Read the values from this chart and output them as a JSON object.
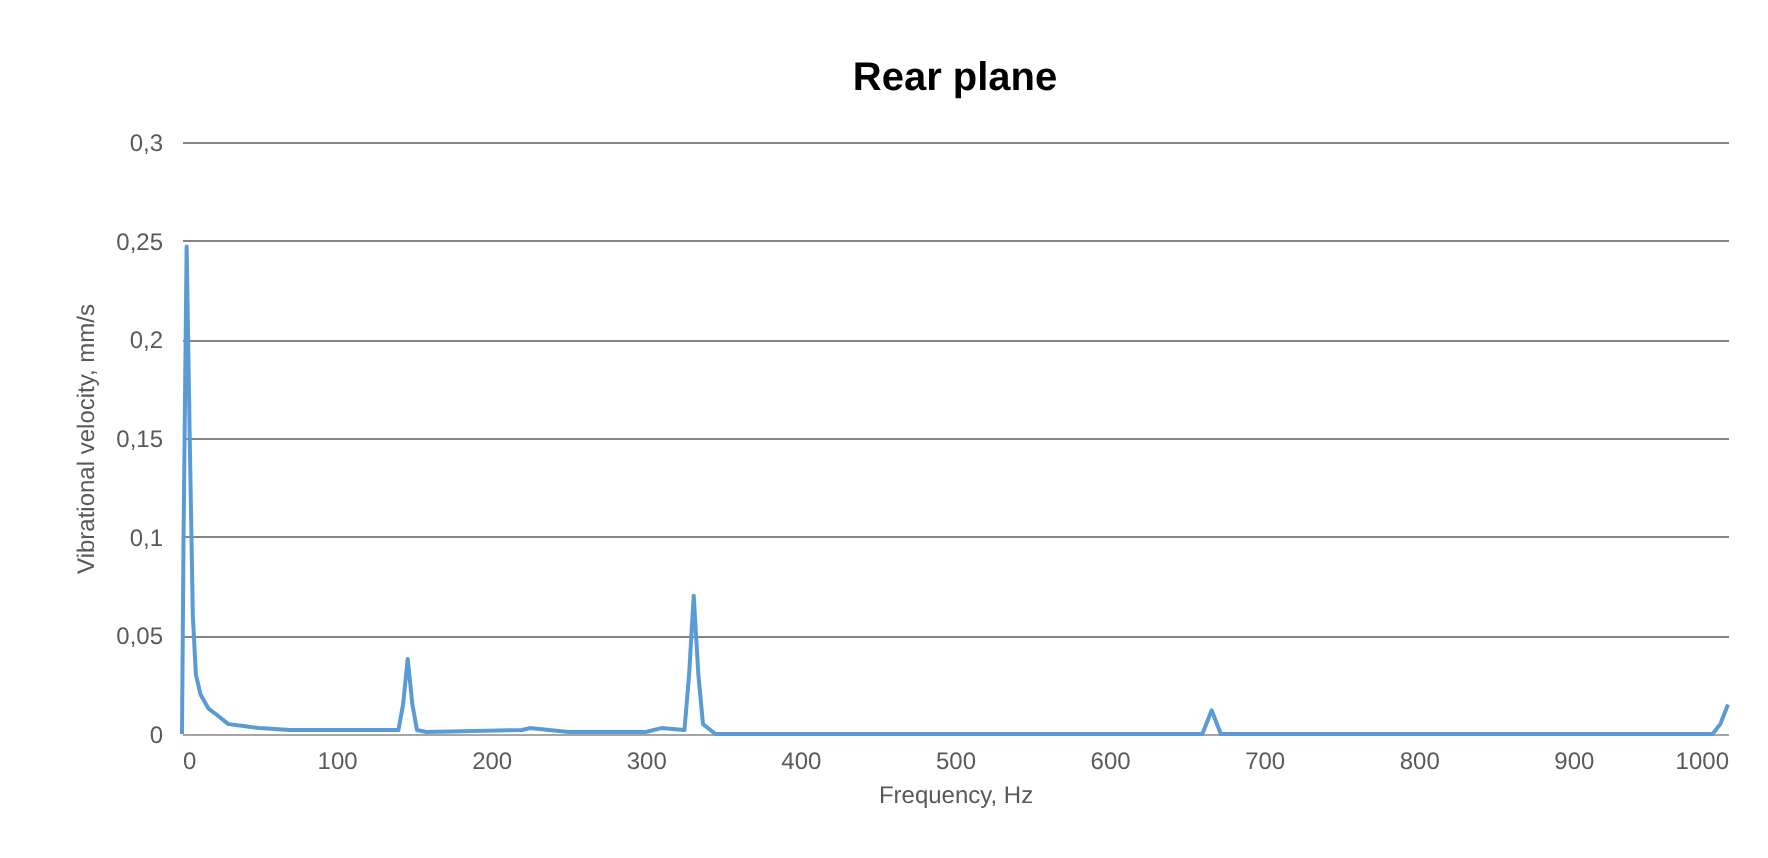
{
  "chart_data": {
    "type": "line",
    "title": "Rear plane",
    "xlabel": "Frequency, Hz",
    "ylabel": "Vibrational velocity, mm/s",
    "series": [
      {
        "color": "#5b9bd5",
        "x": [
          0,
          1,
          3,
          5,
          7,
          9,
          12,
          17,
          22,
          30,
          40,
          50,
          70,
          100,
          140,
          143,
          146,
          149,
          152,
          158,
          220,
          225,
          250,
          300,
          310,
          325,
          328,
          331,
          334,
          337,
          345,
          400,
          500,
          600,
          660,
          663,
          666,
          669,
          672,
          700,
          800,
          900,
          990,
          995,
          1000
        ],
        "values": [
          0,
          0.1,
          0.247,
          0.15,
          0.06,
          0.03,
          0.02,
          0.013,
          0.01,
          0.005,
          0.004,
          0.003,
          0.002,
          0.002,
          0.002,
          0.015,
          0.038,
          0.015,
          0.002,
          0.001,
          0.002,
          0.003,
          0.001,
          0.001,
          0.003,
          0.002,
          0.03,
          0.07,
          0.03,
          0.005,
          0,
          0,
          0,
          0,
          0,
          0.006,
          0.012,
          0.006,
          0,
          0,
          0,
          0,
          0,
          0.005,
          0.015
        ]
      }
    ],
    "xlim": [
      0,
      1000
    ],
    "xticks": [
      0,
      100,
      200,
      300,
      400,
      500,
      600,
      700,
      800,
      900,
      1000
    ],
    "ylim": [
      0,
      0.3
    ],
    "yticks": [
      0,
      {
        "value": 0.05,
        "label": "0,05"
      },
      {
        "value": 0.1,
        "label": "0,1"
      },
      {
        "value": 0.15,
        "label": "0,15"
      },
      {
        "value": 0.2,
        "label": "0,2"
      },
      {
        "value": 0.25,
        "label": "0,25"
      },
      {
        "value": 0.3,
        "label": "0,3"
      }
    ],
    "grid": "y",
    "marker": "none",
    "line_style": "solid"
  }
}
